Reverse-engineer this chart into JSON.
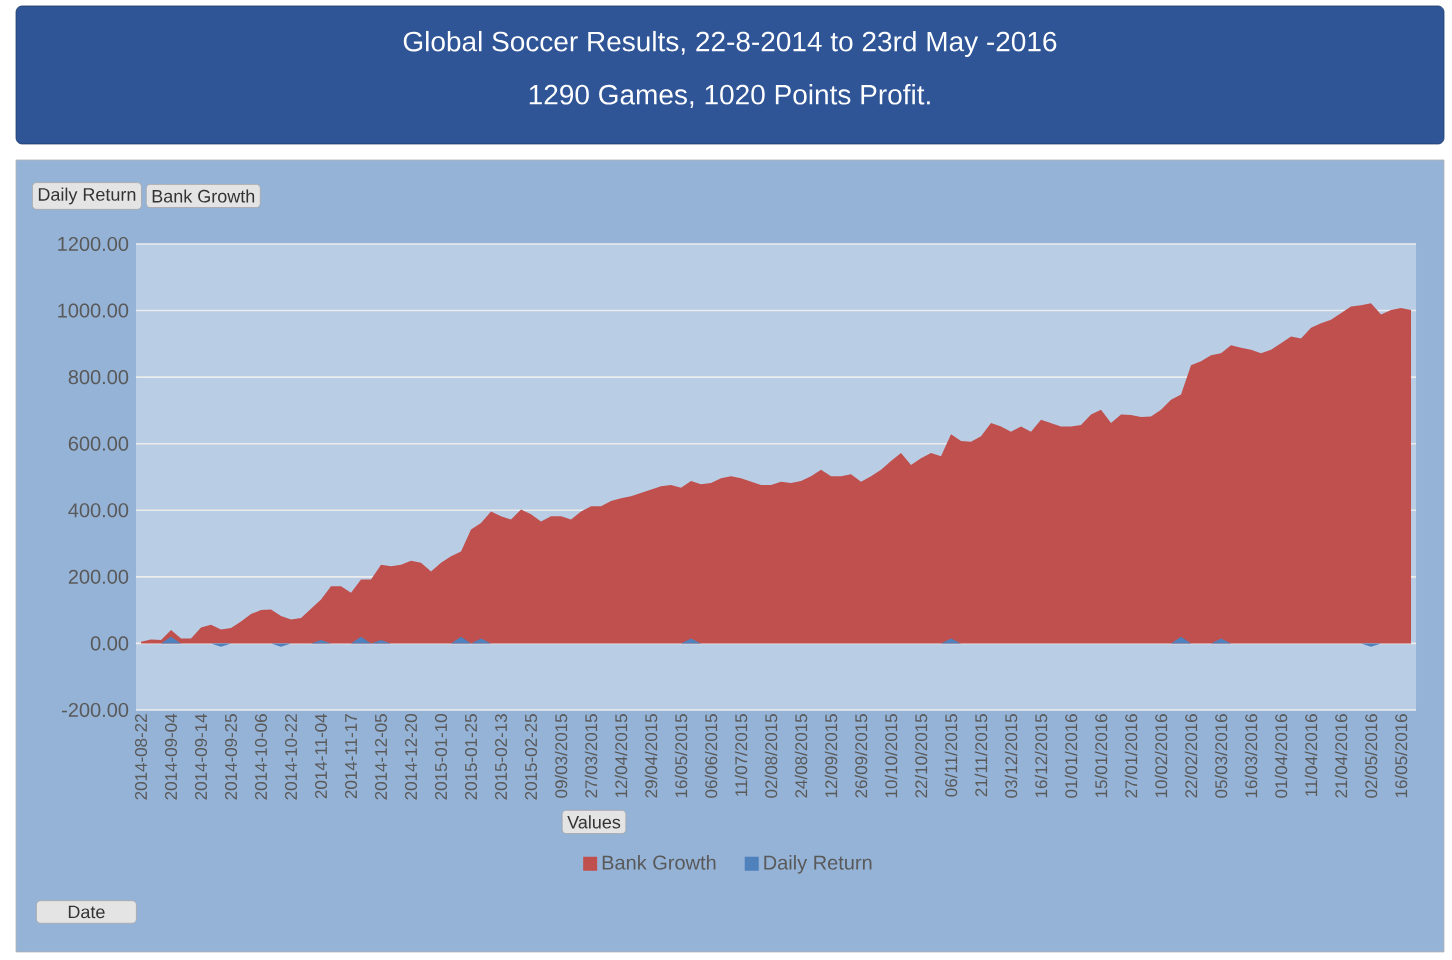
{
  "chart_data": {
    "type": "area",
    "title": "Global Soccer Results, 22-8-2014 to 23rd May -2016",
    "subtitle": "1290 Games,   1020 Points Profit.",
    "legend_title": "Values",
    "annotations": [
      "Daily Return",
      "Bank Growth",
      "Date"
    ],
    "categories": [
      "2014-08-22",
      null,
      null,
      "2014-09-04",
      null,
      null,
      "2014-09-14",
      null,
      null,
      "2014-09-25",
      null,
      null,
      "2014-10-06",
      null,
      null,
      "2014-10-22",
      null,
      null,
      "2014-11-04",
      null,
      null,
      "2014-11-17",
      null,
      null,
      "2014-12-05",
      null,
      null,
      "2014-12-20",
      null,
      null,
      "2015-01-10",
      null,
      null,
      "2015-01-25",
      null,
      null,
      "2015-02-13",
      null,
      null,
      "2015-02-25",
      null,
      null,
      "09/03/2015",
      null,
      null,
      "27/03/2015",
      null,
      null,
      "12/04/2015",
      null,
      null,
      "29/04/2015",
      null,
      null,
      "16/05/2015",
      null,
      null,
      "06/06/2015",
      null,
      null,
      "11/07/2015",
      null,
      null,
      "02/08/2015",
      null,
      null,
      "24/08/2015",
      null,
      null,
      "12/09/2015",
      null,
      null,
      "26/09/2015",
      null,
      null,
      "10/10/2015",
      null,
      null,
      "22/10/2015",
      null,
      null,
      "06/11/2015",
      null,
      null,
      "21/11/2015",
      null,
      null,
      "03/12/2015",
      null,
      null,
      "16/12/2015",
      null,
      null,
      "01/01/2016",
      null,
      null,
      "15/01/2016",
      null,
      null,
      "27/01/2016",
      null,
      null,
      "10/02/2016",
      null,
      null,
      "22/02/2016",
      null,
      null,
      "05/03/2016",
      null,
      null,
      "16/03/2016",
      null,
      null,
      "01/04/2016",
      null,
      null,
      "11/04/2016",
      null,
      null,
      "21/04/2016",
      null,
      null,
      "02/05/2016",
      null,
      null,
      "16/05/2016",
      null
    ],
    "series": [
      {
        "name": "Bank Growth",
        "color": "#c0504d",
        "values": [
          5,
          12,
          10,
          40,
          15,
          15,
          48,
          56,
          42,
          46,
          66,
          88,
          100,
          102,
          82,
          72,
          76,
          104,
          132,
          172,
          172,
          152,
          192,
          192,
          236,
          232,
          236,
          248,
          242,
          216,
          242,
          262,
          276,
          342,
          362,
          396,
          382,
          372,
          402,
          388,
          366,
          382,
          382,
          372,
          396,
          412,
          412,
          428,
          436,
          442,
          452,
          462,
          472,
          476,
          468,
          488,
          478,
          482,
          496,
          502,
          496,
          486,
          476,
          476,
          486,
          482,
          488,
          502,
          522,
          502,
          502,
          508,
          486,
          502,
          522,
          548,
          572,
          536,
          556,
          572,
          562,
          628,
          608,
          606,
          622,
          662,
          652,
          636,
          652,
          636,
          672,
          662,
          652,
          652,
          656,
          688,
          702,
          662,
          688,
          686,
          680,
          682,
          702,
          732,
          748,
          836,
          848,
          866,
          872,
          896,
          888,
          882,
          872,
          882,
          902,
          922,
          916,
          948,
          962,
          972,
          992,
          1012,
          1016,
          1022,
          988,
          1002,
          1008,
          1002
        ]
      },
      {
        "name": "Daily Return",
        "color": "#4f81bd",
        "values": [
          0,
          0,
          0,
          20,
          0,
          0,
          0,
          0,
          -10,
          0,
          0,
          0,
          0,
          0,
          -10,
          0,
          0,
          0,
          10,
          0,
          0,
          0,
          20,
          0,
          10,
          0,
          0,
          0,
          0,
          0,
          0,
          0,
          20,
          0,
          15,
          0,
          0,
          0,
          0,
          0,
          0,
          0,
          0,
          0,
          0,
          0,
          0,
          0,
          0,
          0,
          0,
          0,
          0,
          0,
          0,
          15,
          0,
          0,
          0,
          0,
          0,
          0,
          0,
          0,
          0,
          0,
          0,
          0,
          0,
          0,
          0,
          0,
          0,
          0,
          0,
          0,
          0,
          0,
          0,
          0,
          0,
          15,
          0,
          0,
          0,
          0,
          0,
          0,
          0,
          0,
          0,
          0,
          0,
          0,
          0,
          0,
          0,
          0,
          0,
          0,
          0,
          0,
          0,
          0,
          20,
          0,
          0,
          0,
          15,
          0,
          0,
          0,
          0,
          0,
          0,
          0,
          0,
          0,
          0,
          0,
          0,
          0,
          0,
          -10,
          0,
          0,
          0,
          0
        ]
      }
    ],
    "ylim": [
      -200,
      1200
    ],
    "yticks": [
      {
        "value": -200,
        "label": "-200.00"
      },
      {
        "value": 0,
        "label": "0.00"
      },
      {
        "value": 200,
        "label": "200.00"
      },
      {
        "value": 400,
        "label": "400.00"
      },
      {
        "value": 600,
        "label": "600.00"
      },
      {
        "value": 800,
        "label": "800.00"
      },
      {
        "value": 1000,
        "label": "1000.00"
      },
      {
        "value": 1200,
        "label": "1200.00"
      }
    ],
    "grid": "y",
    "legend": "bottom"
  }
}
